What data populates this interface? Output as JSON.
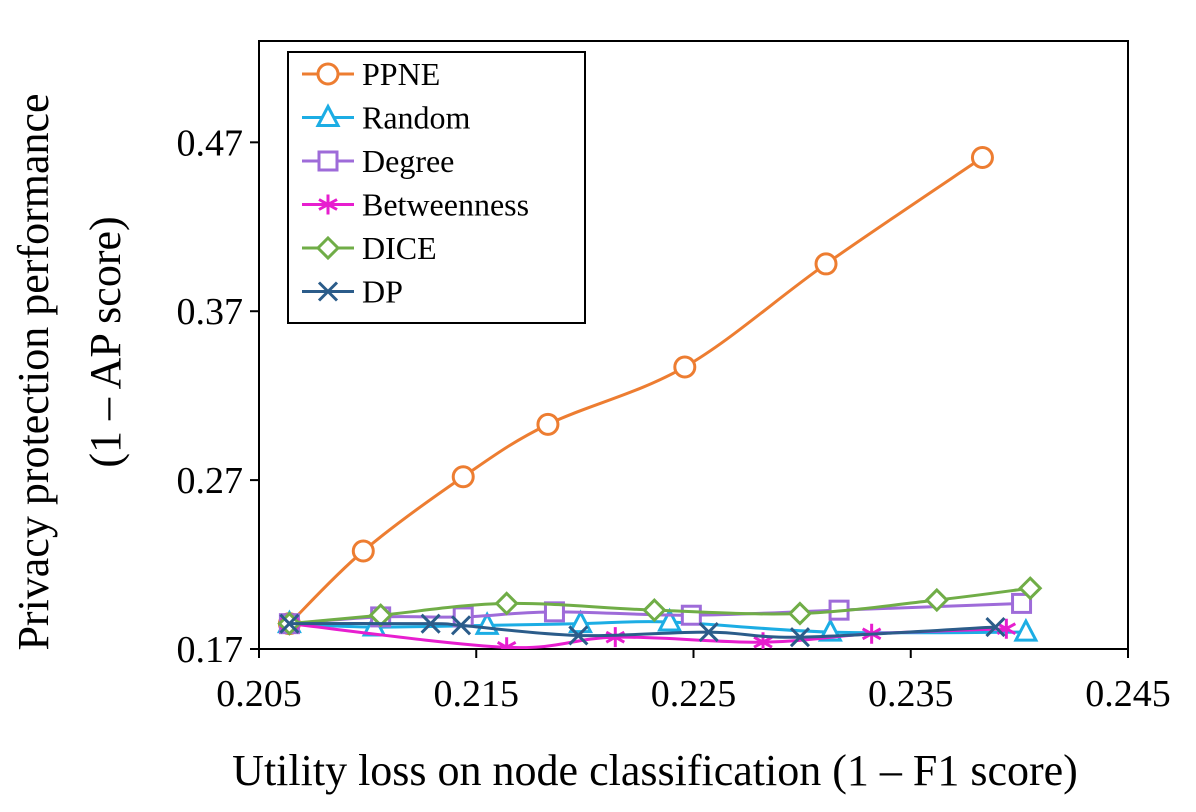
{
  "chart_data": {
    "type": "line",
    "title": "",
    "xlabel": "Utility loss on node classification (1 – F1 score)",
    "ylabel_line1": "Privacy protection performance",
    "ylabel_line2": "(1 – AP score)",
    "xlim": [
      0.205,
      0.245
    ],
    "ylim": [
      0.17,
      0.53
    ],
    "xticks": [
      0.205,
      0.215,
      0.225,
      0.235,
      0.245
    ],
    "xtick_labels": [
      "0.205",
      "0.215",
      "0.225",
      "0.235",
      "0.245"
    ],
    "yticks": [
      0.17,
      0.27,
      0.37,
      0.47
    ],
    "ytick_labels": [
      "0.17",
      "0.27",
      "0.37",
      "0.47"
    ],
    "grid": false,
    "legend_position": "top-left",
    "series": [
      {
        "name": "PPNE",
        "color": "#ED7D31",
        "marker": "circle",
        "x": [
          0.2064,
          0.2098,
          0.2144,
          0.2183,
          0.2246,
          0.2311,
          0.2383
        ],
        "y": [
          0.185,
          0.228,
          0.272,
          0.303,
          0.337,
          0.398,
          0.461
        ]
      },
      {
        "name": "Random",
        "color": "#1CADE4",
        "marker": "triangle",
        "x": [
          0.2064,
          0.2103,
          0.2155,
          0.2198,
          0.2239,
          0.2313,
          0.2403
        ],
        "y": [
          0.185,
          0.183,
          0.184,
          0.185,
          0.186,
          0.18,
          0.18
        ]
      },
      {
        "name": "Degree",
        "color": "#9E6BD9",
        "marker": "square",
        "x": [
          0.2064,
          0.2106,
          0.2144,
          0.2186,
          0.2249,
          0.2317,
          0.2401
        ],
        "y": [
          0.185,
          0.189,
          0.189,
          0.192,
          0.19,
          0.193,
          0.197
        ]
      },
      {
        "name": "Betweenness",
        "color": "#E71ECF",
        "marker": "asterisk",
        "x": [
          0.2064,
          0.2164,
          0.2214,
          0.2282,
          0.2332,
          0.2394
        ],
        "y": [
          0.185,
          0.171,
          0.177,
          0.174,
          0.179,
          0.182
        ]
      },
      {
        "name": "DICE",
        "color": "#70AD47",
        "marker": "diamond",
        "x": [
          0.2064,
          0.2106,
          0.2164,
          0.2232,
          0.2299,
          0.2362,
          0.2405
        ],
        "y": [
          0.185,
          0.19,
          0.197,
          0.193,
          0.191,
          0.199,
          0.206
        ]
      },
      {
        "name": "DP",
        "color": "#2B5C8A",
        "marker": "x",
        "x": [
          0.2064,
          0.2129,
          0.2143,
          0.2197,
          0.2257,
          0.2299,
          0.2389
        ],
        "y": [
          0.185,
          0.185,
          0.184,
          0.178,
          0.18,
          0.177,
          0.183
        ]
      }
    ]
  }
}
